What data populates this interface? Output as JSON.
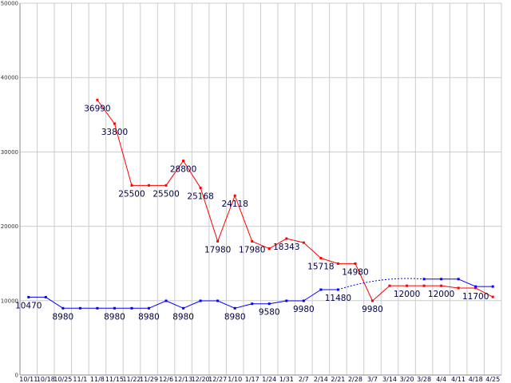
{
  "chart_data": {
    "type": "line",
    "title": "",
    "xlabel": "",
    "ylabel": "",
    "ylim": [
      0,
      50000
    ],
    "yticks": [
      0,
      10000,
      20000,
      30000,
      40000,
      50000
    ],
    "grid": true,
    "categories": [
      "10/11",
      "10/18",
      "10/25",
      "11/1",
      "11/8",
      "11/15",
      "11/22",
      "11/29",
      "12/6",
      "12/13",
      "12/20",
      "12/27",
      "1/10",
      "1/17",
      "1/24",
      "1/31",
      "2/7",
      "2/14",
      "2/21",
      "2/28",
      "3/7",
      "3/14",
      "3/20",
      "3/28",
      "4/4",
      "4/11",
      "4/18",
      "4/25"
    ],
    "series": [
      {
        "color": "#ff0000",
        "values": [
          null,
          null,
          null,
          null,
          36990,
          33800,
          25500,
          25500,
          25500,
          28800,
          25168,
          17980,
          24118,
          17980,
          17000,
          18343,
          17800,
          15718,
          14980,
          14980,
          9980,
          12000,
          12000,
          12000,
          12000,
          11700,
          11700,
          10500
        ],
        "labels": [
          null,
          null,
          null,
          null,
          "36990",
          "33800",
          "25500",
          null,
          "25500",
          "28800",
          "25168",
          "17980",
          "24118",
          "17980",
          null,
          "18343",
          null,
          "15718",
          null,
          "14980",
          "9980",
          null,
          "12000",
          null,
          "12000",
          null,
          "11700",
          null
        ]
      },
      {
        "color": "#0000ff",
        "values": [
          10470,
          10470,
          8980,
          8980,
          8980,
          8980,
          8980,
          8980,
          9980,
          8980,
          9980,
          9980,
          8980,
          9580,
          9580,
          9980,
          9980,
          11480,
          11480,
          null,
          null,
          null,
          null,
          12900,
          12900,
          12900,
          11900,
          11900
        ],
        "labels": [
          "10470",
          null,
          "8980",
          null,
          null,
          "8980",
          null,
          "8980",
          null,
          "8980",
          null,
          null,
          "8980",
          null,
          "9580",
          null,
          "9980",
          null,
          "11480",
          null,
          null,
          null,
          null,
          null,
          null,
          null,
          null,
          null
        ],
        "gap_style": "dotted"
      }
    ]
  }
}
